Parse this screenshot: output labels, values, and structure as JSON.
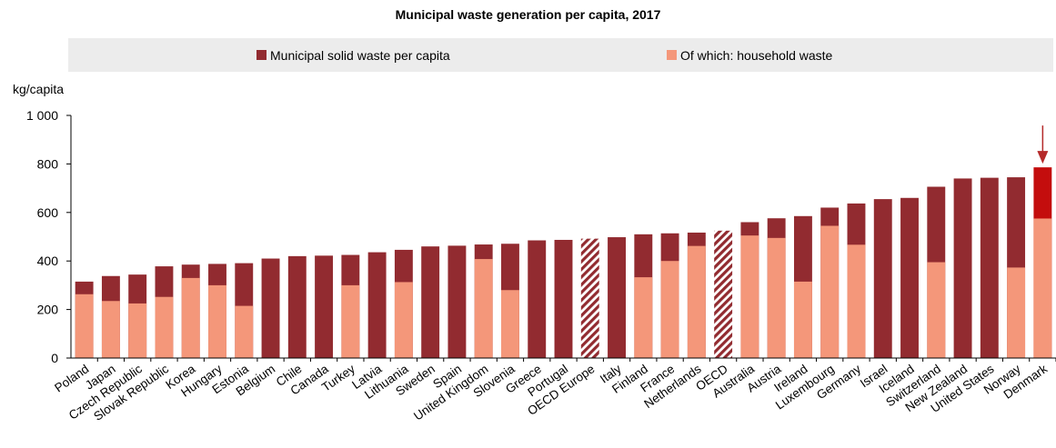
{
  "chart_data": {
    "type": "bar",
    "title": "Municipal waste generation per capita, 2017",
    "ylabel": "kg/capita",
    "ylim": [
      0,
      1000
    ],
    "yticks": [
      0,
      200,
      400,
      600,
      800,
      1000
    ],
    "ytick_labels": [
      "0",
      "200",
      "400",
      "600",
      "800",
      "1 000"
    ],
    "legend_position": "top",
    "series": [
      {
        "name": "Municipal solid waste per capita",
        "color": "#922b30"
      },
      {
        "name": "Of which: household waste",
        "color": "#f4977a"
      }
    ],
    "highlight_color": "#c40d0d",
    "highlight_arrow_color": "#b52a2a",
    "categories": [
      "Poland",
      "Japan",
      "Czech Republic",
      "Slovak Republic",
      "Korea",
      "Hungary",
      "Estonia",
      "Belgium",
      "Chile",
      "Canada",
      "Turkey",
      "Latvia",
      "Lithuania",
      "Sweden",
      "Spain",
      "United Kingdom",
      "Slovenia",
      "Greece",
      "Portugal",
      "OECD Europe",
      "Italy",
      "Finland",
      "France",
      "Netherlands",
      "OECD",
      "Australia",
      "Austria",
      "Ireland",
      "Luxembourg",
      "Germany",
      "Israel",
      "Iceland",
      "Switzerland",
      "New Zealand",
      "United States",
      "Norway",
      "Denmark"
    ],
    "municipal": [
      315,
      338,
      344,
      378,
      385,
      388,
      391,
      410,
      420,
      422,
      425,
      436,
      446,
      460,
      463,
      468,
      471,
      485,
      487,
      492,
      498,
      510,
      514,
      517,
      525,
      560,
      576,
      585,
      620,
      637,
      655,
      660,
      706,
      740,
      743,
      745,
      786
    ],
    "household": [
      263,
      235,
      225,
      252,
      330,
      300,
      215,
      null,
      null,
      null,
      300,
      null,
      313,
      null,
      null,
      408,
      280,
      null,
      null,
      null,
      null,
      333,
      400,
      462,
      null,
      505,
      495,
      315,
      545,
      467,
      null,
      null,
      395,
      null,
      null,
      373,
      575
    ],
    "aggregates": [
      "OECD Europe",
      "OECD"
    ],
    "highlighted": "Denmark"
  }
}
